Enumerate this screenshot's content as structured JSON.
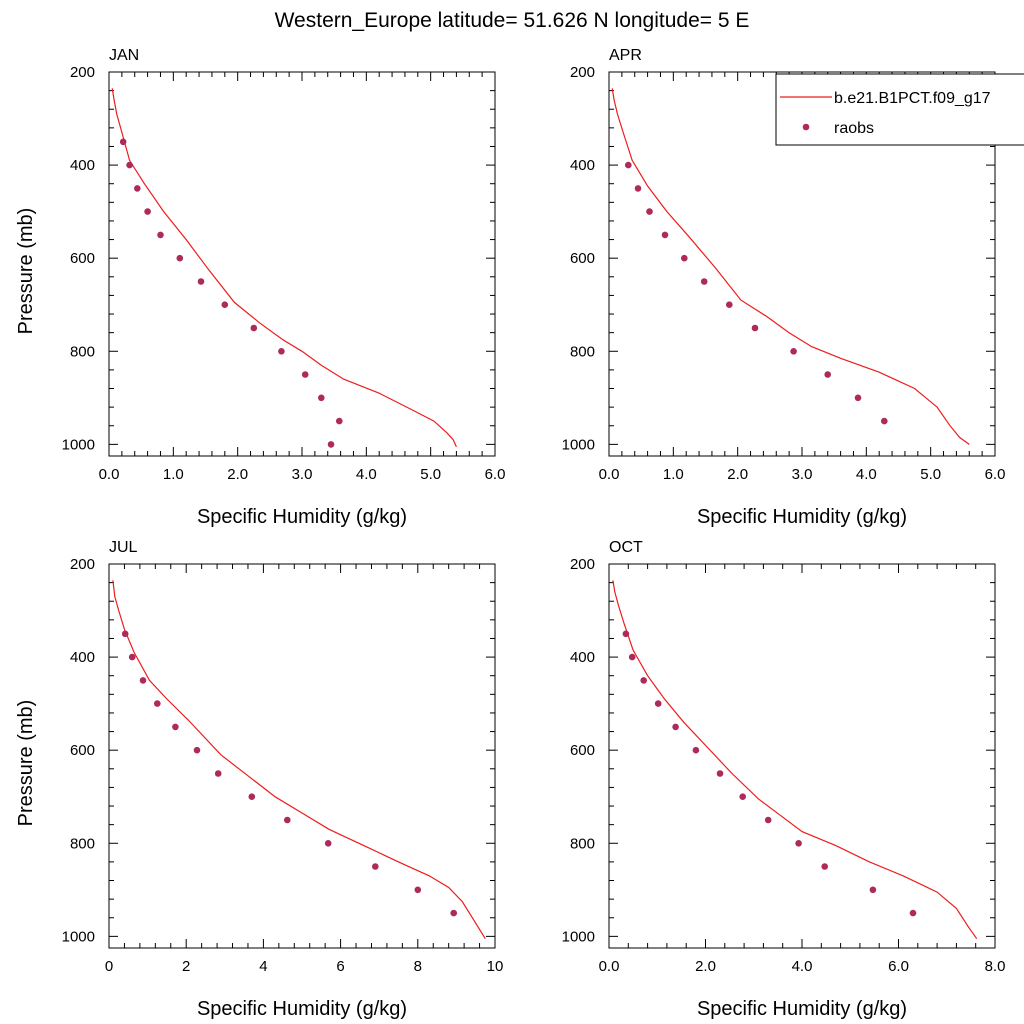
{
  "figure": {
    "title": "Western_Europe  latitude= 51.626 N longitude= 5 E"
  },
  "legend": {
    "placement": "top-right",
    "entries": [
      {
        "label": "b.e21.B1PCT.f09_g17",
        "kind": "line",
        "color": "#ee1c1c"
      },
      {
        "label": "raobs",
        "kind": "marker",
        "color": "#ad2a5b"
      }
    ]
  },
  "chart_data": [
    {
      "type": "line",
      "title": "JAN",
      "xlabel": "Specific Humidity (g/kg)",
      "ylabel": "Pressure (mb)",
      "xlim": [
        0,
        6
      ],
      "ylim": [
        200,
        1025
      ],
      "y_inverted": true,
      "xticks": [
        0,
        1,
        2,
        3,
        4,
        5,
        6
      ],
      "xtick_labels": [
        "0.0",
        "1.0",
        "2.0",
        "3.0",
        "4.0",
        "5.0",
        "6.0"
      ],
      "yticks": [
        200,
        400,
        600,
        800,
        1000
      ],
      "ytick_labels": [
        "200",
        "400",
        "600",
        "800",
        "1000"
      ],
      "series": [
        {
          "name": "b.e21.B1PCT.f09_g17",
          "kind": "line",
          "x": [
            0.05,
            0.08,
            0.12,
            0.2,
            0.32,
            0.55,
            0.85,
            1.2,
            1.55,
            1.95,
            2.35,
            2.7,
            3.0,
            3.3,
            3.65,
            4.2,
            4.7,
            5.05,
            5.25,
            5.35,
            5.4
          ],
          "y": [
            235,
            260,
            290,
            330,
            390,
            440,
            500,
            560,
            625,
            695,
            740,
            775,
            800,
            830,
            860,
            890,
            925,
            950,
            975,
            990,
            1005
          ]
        },
        {
          "name": "raobs",
          "kind": "scatter",
          "x": [
            0.22,
            0.32,
            0.44,
            0.6,
            0.8,
            1.1,
            1.43,
            1.8,
            2.25,
            2.68,
            3.05,
            3.3,
            3.58,
            3.45
          ],
          "y": [
            350,
            400,
            450,
            500,
            550,
            600,
            650,
            700,
            750,
            800,
            850,
            900,
            950,
            1000
          ]
        }
      ]
    },
    {
      "type": "line",
      "title": "APR",
      "xlabel": "Specific Humidity (g/kg)",
      "ylabel": "",
      "xlim": [
        0,
        6
      ],
      "ylim": [
        200,
        1025
      ],
      "y_inverted": true,
      "xticks": [
        0,
        1,
        2,
        3,
        4,
        5,
        6
      ],
      "xtick_labels": [
        "0.0",
        "1.0",
        "2.0",
        "3.0",
        "4.0",
        "5.0",
        "6.0"
      ],
      "yticks": [
        200,
        400,
        600,
        800,
        1000
      ],
      "ytick_labels": [
        "200",
        "400",
        "600",
        "800",
        "1000"
      ],
      "series": [
        {
          "name": "b.e21.B1PCT.f09_g17",
          "kind": "line",
          "x": [
            0.05,
            0.08,
            0.13,
            0.22,
            0.36,
            0.6,
            0.9,
            1.25,
            1.65,
            2.05,
            2.45,
            2.8,
            3.15,
            3.6,
            4.2,
            4.75,
            5.1,
            5.3,
            5.45,
            5.6
          ],
          "y": [
            235,
            260,
            290,
            330,
            390,
            445,
            500,
            555,
            620,
            690,
            725,
            760,
            790,
            815,
            845,
            880,
            920,
            960,
            985,
            1000
          ]
        },
        {
          "name": "raobs",
          "kind": "scatter",
          "x": [
            0.3,
            0.45,
            0.63,
            0.87,
            1.17,
            1.48,
            1.87,
            2.27,
            2.87,
            3.4,
            3.87,
            4.28
          ],
          "y": [
            400,
            450,
            500,
            550,
            600,
            650,
            700,
            750,
            800,
            850,
            900,
            950
          ]
        }
      ]
    },
    {
      "type": "line",
      "title": "JUL",
      "xlabel": "Specific Humidity (g/kg)",
      "ylabel": "Pressure (mb)",
      "xlim": [
        0,
        10
      ],
      "ylim": [
        200,
        1025
      ],
      "y_inverted": true,
      "xticks": [
        0,
        2,
        4,
        6,
        8,
        10
      ],
      "xtick_labels": [
        "0",
        "2",
        "4",
        "6",
        "8",
        "10"
      ],
      "yticks": [
        200,
        400,
        600,
        800,
        1000
      ],
      "ytick_labels": [
        "200",
        "400",
        "600",
        "800",
        "1000"
      ],
      "series": [
        {
          "name": "b.e21.B1PCT.f09_g17",
          "kind": "line",
          "x": [
            0.1,
            0.15,
            0.25,
            0.4,
            0.65,
            1.05,
            1.5,
            2.05,
            2.9,
            3.6,
            4.3,
            5.0,
            5.7,
            6.6,
            7.5,
            8.3,
            8.8,
            9.15,
            9.45,
            9.75
          ],
          "y": [
            235,
            270,
            300,
            340,
            390,
            450,
            490,
            535,
            610,
            655,
            700,
            735,
            770,
            805,
            840,
            870,
            895,
            925,
            965,
            1005
          ]
        },
        {
          "name": "raobs",
          "kind": "scatter",
          "x": [
            0.42,
            0.6,
            0.88,
            1.25,
            1.72,
            2.28,
            2.83,
            3.7,
            4.62,
            5.68,
            6.9,
            8.0,
            8.93
          ],
          "y": [
            350,
            400,
            450,
            500,
            550,
            600,
            650,
            700,
            750,
            800,
            850,
            900,
            950
          ]
        }
      ]
    },
    {
      "type": "line",
      "title": "OCT",
      "xlabel": "Specific Humidity (g/kg)",
      "ylabel": "",
      "xlim": [
        0,
        8
      ],
      "ylim": [
        200,
        1025
      ],
      "y_inverted": true,
      "xticks": [
        0,
        2,
        4,
        6,
        8
      ],
      "xtick_labels": [
        "0.0",
        "2.0",
        "4.0",
        "6.0",
        "8.0"
      ],
      "yticks": [
        200,
        400,
        600,
        800,
        1000
      ],
      "ytick_labels": [
        "200",
        "400",
        "600",
        "800",
        "1000"
      ],
      "series": [
        {
          "name": "b.e21.B1PCT.f09_g17",
          "kind": "line",
          "x": [
            0.08,
            0.12,
            0.2,
            0.32,
            0.5,
            0.8,
            1.15,
            1.55,
            2.05,
            2.55,
            3.1,
            3.55,
            4.0,
            4.7,
            5.4,
            6.1,
            6.8,
            7.2,
            7.45,
            7.62
          ],
          "y": [
            235,
            260,
            290,
            330,
            385,
            440,
            490,
            540,
            595,
            650,
            705,
            740,
            775,
            805,
            840,
            870,
            905,
            940,
            980,
            1005
          ]
        },
        {
          "name": "raobs",
          "kind": "scatter",
          "x": [
            0.35,
            0.48,
            0.72,
            1.02,
            1.38,
            1.8,
            2.3,
            2.77,
            3.3,
            3.93,
            4.47,
            5.47,
            6.3
          ],
          "y": [
            350,
            400,
            450,
            500,
            550,
            600,
            650,
            700,
            750,
            800,
            850,
            900,
            950
          ]
        }
      ]
    }
  ]
}
